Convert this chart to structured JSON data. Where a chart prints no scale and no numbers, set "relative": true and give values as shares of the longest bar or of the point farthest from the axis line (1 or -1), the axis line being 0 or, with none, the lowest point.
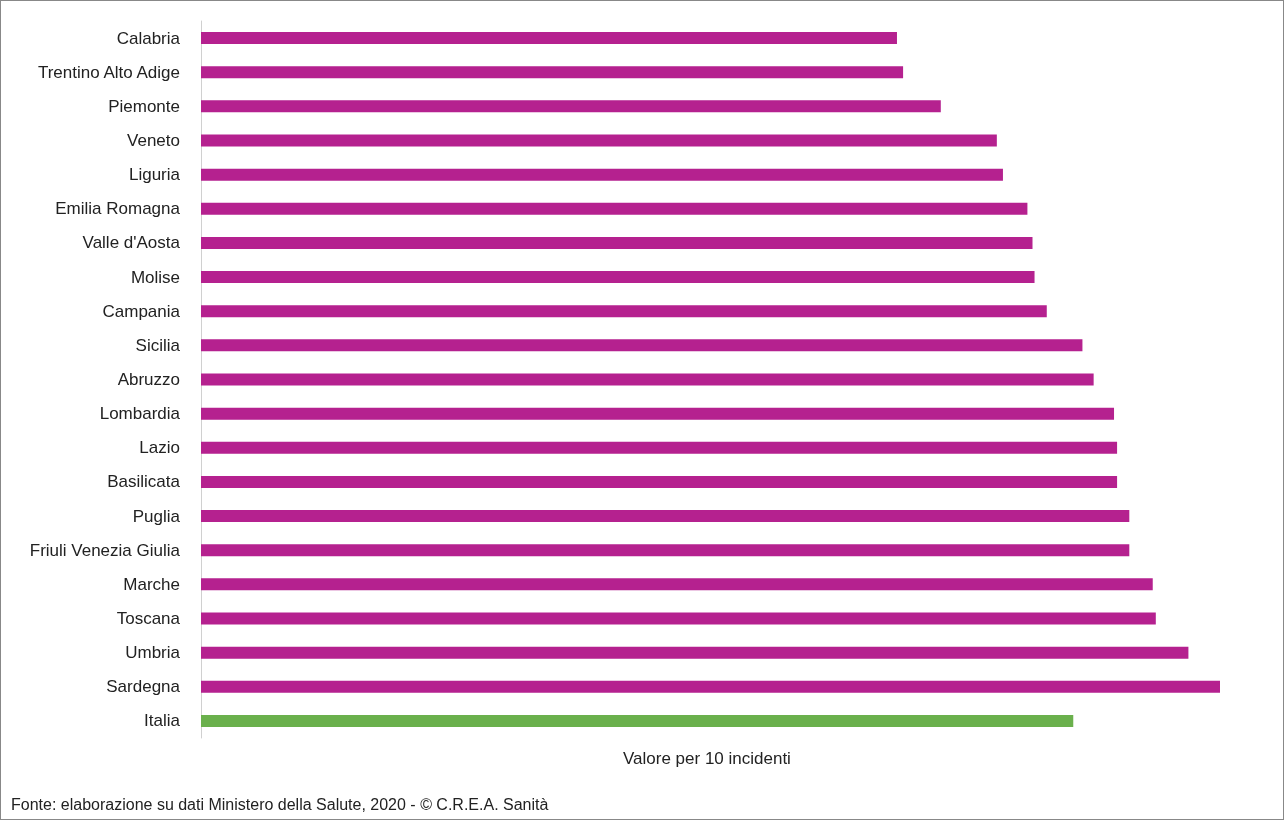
{
  "chart_data": {
    "type": "bar",
    "orientation": "horizontal",
    "relative": true,
    "categories": [
      "Calabria",
      "Trentino Alto Adige",
      "Piemonte",
      "Veneto",
      "Liguria",
      "Emilia Romagna",
      "Valle d'Aosta",
      "Molise",
      "Campania",
      "Sicilia",
      "Abruzzo",
      "Lombardia",
      "Lazio",
      "Basilicata",
      "Puglia",
      "Friuli Venezia Giulia",
      "Marche",
      "Toscana",
      "Umbria",
      "Sardegna",
      "Italia"
    ],
    "values": [
      0.683,
      0.689,
      0.726,
      0.781,
      0.787,
      0.811,
      0.816,
      0.818,
      0.83,
      0.865,
      0.876,
      0.896,
      0.899,
      0.899,
      0.911,
      0.911,
      0.934,
      0.937,
      0.969,
      1,
      0.856
    ],
    "colors": [
      "#b5218f",
      "#b5218f",
      "#b5218f",
      "#b5218f",
      "#b5218f",
      "#b5218f",
      "#b5218f",
      "#b5218f",
      "#b5218f",
      "#b5218f",
      "#b5218f",
      "#b5218f",
      "#b5218f",
      "#b5218f",
      "#b5218f",
      "#b5218f",
      "#b5218f",
      "#b5218f",
      "#b5218f",
      "#b5218f",
      "#6ab04c"
    ],
    "xlabel": "Valore per 10 incidenti",
    "annotations": [
      "Fonte: elaborazione su dati Ministero della Salute, 2020 - © C.R.E.A. Sanità"
    ]
  }
}
